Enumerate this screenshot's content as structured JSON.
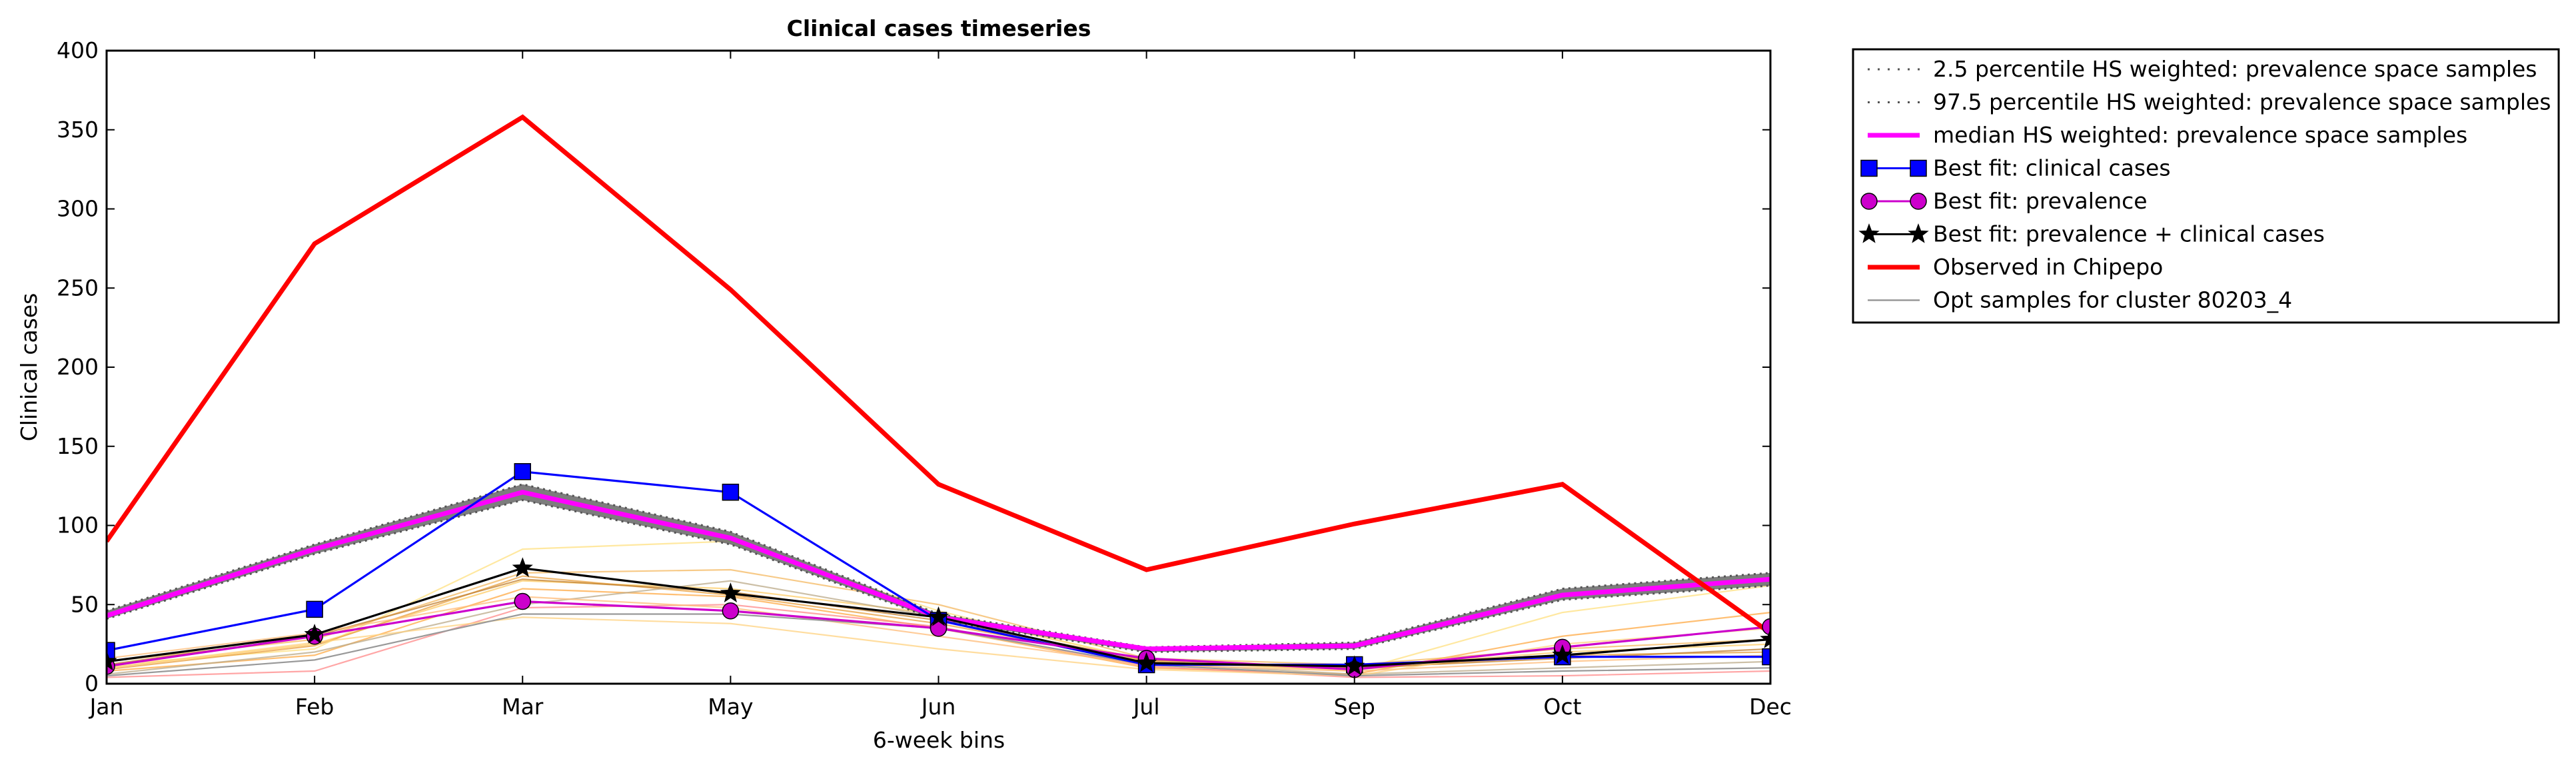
{
  "chart_data": {
    "type": "line",
    "title": "Clinical cases timeseries",
    "xlabel": "6-week bins",
    "ylabel": "Clinical cases",
    "categories": [
      "Jan",
      "Feb",
      "Mar",
      "May",
      "Jun",
      "Jul",
      "Sep",
      "Oct",
      "Dec"
    ],
    "ylim": [
      0,
      400
    ],
    "yticks": [
      "0",
      "50",
      "100",
      "150",
      "200",
      "250",
      "300",
      "350",
      "400"
    ],
    "grid": false,
    "legend_position": "outside-top-right",
    "series": [
      {
        "name": "2.5 percentile HS weighted: prevalence space samples",
        "color": "#555555",
        "style": "dotted-band-low",
        "values": [
          41,
          82,
          116,
          88,
          40,
          20,
          22,
          53,
          62
        ]
      },
      {
        "name": "97.5 percentile HS weighted: prevalence space samples",
        "color": "#555555",
        "style": "dotted-band-high",
        "values": [
          46,
          88,
          126,
          96,
          44,
          23,
          26,
          60,
          70
        ]
      },
      {
        "name": "median HS weighted: prevalence space samples",
        "color": "#ff00ff",
        "style": "thick",
        "values": [
          43,
          85,
          121,
          92,
          42,
          22,
          24,
          56,
          66
        ]
      },
      {
        "name": "Best fit: clinical cases",
        "color": "#0000ff",
        "marker": "square",
        "values": [
          21,
          47,
          134,
          121,
          40,
          12,
          12,
          17,
          17
        ]
      },
      {
        "name": "Best fit: prevalence",
        "color": "#cc00cc",
        "marker": "circle",
        "values": [
          11,
          30,
          52,
          46,
          35,
          16,
          9,
          23,
          36
        ]
      },
      {
        "name": "Best fit: prevalence + clinical cases",
        "color": "#000000",
        "marker": "star",
        "values": [
          14,
          31,
          73,
          57,
          42,
          13,
          11,
          18,
          28
        ]
      },
      {
        "name": "Observed in Chipepo",
        "color": "#ff0000",
        "style": "thick",
        "values": [
          90,
          278,
          358,
          249,
          126,
          72,
          101,
          126,
          32
        ]
      },
      {
        "name": "Opt samples for cluster 80203_4",
        "color": "#999999",
        "style": "thin",
        "values": [
          5,
          15,
          44,
          44,
          35,
          12,
          5,
          8,
          10
        ]
      }
    ],
    "opt_samples_extra": [
      {
        "color": "#ffcc66",
        "values": [
          10,
          25,
          65,
          60,
          44,
          15,
          10,
          20,
          25
        ]
      },
      {
        "color": "#ffe080",
        "values": [
          12,
          22,
          85,
          90,
          46,
          14,
          8,
          45,
          62
        ]
      },
      {
        "color": "#ffaa44",
        "values": [
          8,
          18,
          60,
          55,
          35,
          10,
          6,
          30,
          45
        ]
      },
      {
        "color": "#f4b860",
        "values": [
          14,
          28,
          70,
          72,
          50,
          16,
          12,
          22,
          28
        ]
      },
      {
        "color": "#e8a040",
        "values": [
          9,
          24,
          68,
          56,
          38,
          14,
          9,
          18,
          20
        ]
      },
      {
        "color": "#ff8888",
        "values": [
          4,
          8,
          48,
          50,
          36,
          11,
          4,
          5,
          8
        ]
      },
      {
        "color": "#c08030",
        "values": [
          12,
          30,
          66,
          58,
          40,
          15,
          10,
          16,
          22
        ]
      },
      {
        "color": "#bbaa88",
        "values": [
          6,
          20,
          50,
          65,
          42,
          13,
          6,
          10,
          14
        ]
      },
      {
        "color": "#ffbb77",
        "values": [
          16,
          32,
          55,
          48,
          30,
          12,
          8,
          14,
          18
        ]
      },
      {
        "color": "#ffd27f",
        "values": [
          10,
          26,
          42,
          38,
          22,
          9,
          5,
          25,
          35
        ]
      }
    ]
  }
}
